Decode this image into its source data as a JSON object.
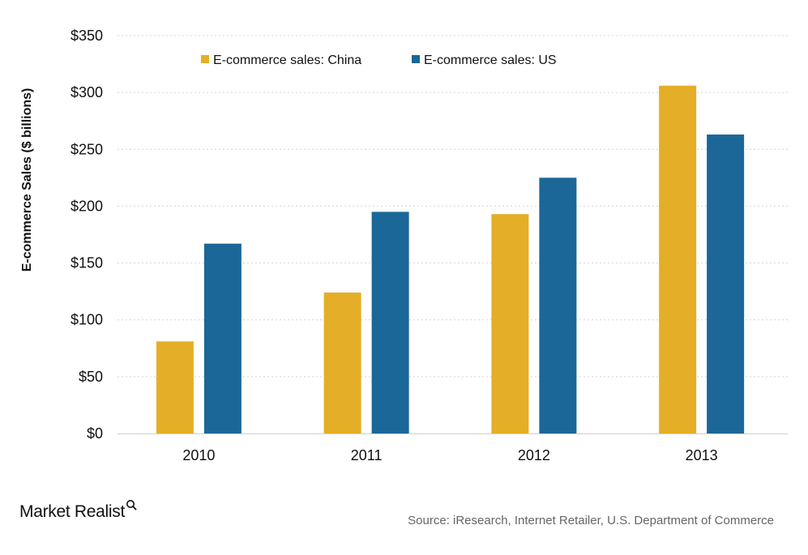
{
  "chart_data": {
    "type": "bar",
    "title": "",
    "xlabel": "",
    "ylabel": "E-commerce Sales ($ billions)",
    "categories": [
      "2010",
      "2011",
      "2012",
      "2013"
    ],
    "series": [
      {
        "name": "E-commerce sales: China",
        "color": "#E5AE27",
        "values": [
          81,
          124,
          193,
          306
        ]
      },
      {
        "name": "E-commerce sales: US",
        "color": "#1B6797",
        "values": [
          167,
          195,
          225,
          263
        ]
      }
    ],
    "ylim": [
      0,
      350
    ],
    "yticks": [
      0,
      50,
      100,
      150,
      200,
      250,
      300,
      350
    ],
    "ytick_labels": [
      "$0",
      "$50",
      "$100",
      "$150",
      "$200",
      "$250",
      "$300",
      "$350"
    ],
    "grid": true,
    "legend_position": "top-left"
  },
  "footer": {
    "brand": "Market Realist",
    "brand_icon": "magnifier-q-icon",
    "source": "Source: iResearch, Internet Retailer, U.S. Department of Commerce"
  }
}
